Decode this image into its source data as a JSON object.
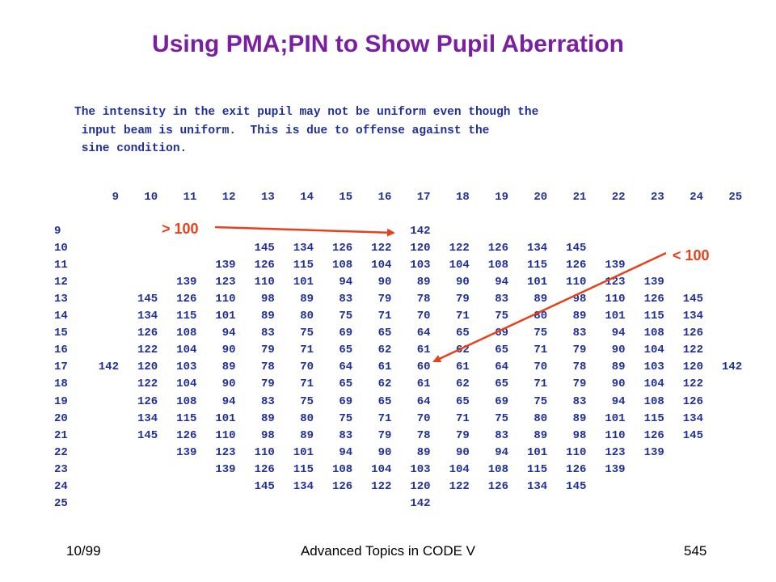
{
  "title": "Using PMA;PIN to Show Pupil Aberration",
  "intro_lines": [
    "The intensity in the exit pupil may not be uniform even though the",
    " input beam is uniform.  This is due to offense against the",
    " sine condition."
  ],
  "grid": {
    "col_headers": [
      "9",
      "10",
      "11",
      "12",
      "13",
      "14",
      "15",
      "16",
      "17",
      "18",
      "19",
      "20",
      "21",
      "22",
      "23",
      "24",
      "25"
    ],
    "rows": [
      {
        "label": "9",
        "cells": [
          "",
          "",
          "",
          "",
          "",
          "",
          "",
          "",
          "142",
          "",
          "",
          "",
          "",
          "",
          "",
          "",
          ""
        ]
      },
      {
        "label": "10",
        "cells": [
          "",
          "",
          "",
          "",
          "145",
          "134",
          "126",
          "122",
          "120",
          "122",
          "126",
          "134",
          "145",
          "",
          "",
          "",
          ""
        ]
      },
      {
        "label": "11",
        "cells": [
          "",
          "",
          "",
          "139",
          "126",
          "115",
          "108",
          "104",
          "103",
          "104",
          "108",
          "115",
          "126",
          "139",
          "",
          "",
          ""
        ]
      },
      {
        "label": "12",
        "cells": [
          "",
          "",
          "139",
          "123",
          "110",
          "101",
          "94",
          "90",
          "89",
          "90",
          "94",
          "101",
          "110",
          "123",
          "139",
          "",
          ""
        ]
      },
      {
        "label": "13",
        "cells": [
          "",
          "145",
          "126",
          "110",
          "98",
          "89",
          "83",
          "79",
          "78",
          "79",
          "83",
          "89",
          "98",
          "110",
          "126",
          "145",
          ""
        ]
      },
      {
        "label": "14",
        "cells": [
          "",
          "134",
          "115",
          "101",
          "89",
          "80",
          "75",
          "71",
          "70",
          "71",
          "75",
          "80",
          "89",
          "101",
          "115",
          "134",
          ""
        ]
      },
      {
        "label": "15",
        "cells": [
          "",
          "126",
          "108",
          "94",
          "83",
          "75",
          "69",
          "65",
          "64",
          "65",
          "69",
          "75",
          "83",
          "94",
          "108",
          "126",
          ""
        ]
      },
      {
        "label": "16",
        "cells": [
          "",
          "122",
          "104",
          "90",
          "79",
          "71",
          "65",
          "62",
          "61",
          "62",
          "65",
          "71",
          "79",
          "90",
          "104",
          "122",
          ""
        ]
      },
      {
        "label": "17",
        "cells": [
          "142",
          "120",
          "103",
          "89",
          "78",
          "70",
          "64",
          "61",
          "60",
          "61",
          "64",
          "70",
          "78",
          "89",
          "103",
          "120",
          "142"
        ]
      },
      {
        "label": "18",
        "cells": [
          "",
          "122",
          "104",
          "90",
          "79",
          "71",
          "65",
          "62",
          "61",
          "62",
          "65",
          "71",
          "79",
          "90",
          "104",
          "122",
          ""
        ]
      },
      {
        "label": "19",
        "cells": [
          "",
          "126",
          "108",
          "94",
          "83",
          "75",
          "69",
          "65",
          "64",
          "65",
          "69",
          "75",
          "83",
          "94",
          "108",
          "126",
          ""
        ]
      },
      {
        "label": "20",
        "cells": [
          "",
          "134",
          "115",
          "101",
          "89",
          "80",
          "75",
          "71",
          "70",
          "71",
          "75",
          "80",
          "89",
          "101",
          "115",
          "134",
          ""
        ]
      },
      {
        "label": "21",
        "cells": [
          "",
          "145",
          "126",
          "110",
          "98",
          "89",
          "83",
          "79",
          "78",
          "79",
          "83",
          "89",
          "98",
          "110",
          "126",
          "145",
          ""
        ]
      },
      {
        "label": "22",
        "cells": [
          "",
          "",
          "139",
          "123",
          "110",
          "101",
          "94",
          "90",
          "89",
          "90",
          "94",
          "101",
          "110",
          "123",
          "139",
          "",
          ""
        ]
      },
      {
        "label": "23",
        "cells": [
          "",
          "",
          "",
          "139",
          "126",
          "115",
          "108",
          "104",
          "103",
          "104",
          "108",
          "115",
          "126",
          "139",
          "",
          "",
          ""
        ]
      },
      {
        "label": "24",
        "cells": [
          "",
          "",
          "",
          "",
          "145",
          "134",
          "126",
          "122",
          "120",
          "122",
          "126",
          "134",
          "145",
          "",
          "",
          "",
          ""
        ]
      },
      {
        "label": "25",
        "cells": [
          "",
          "",
          "",
          "",
          "",
          "",
          "",
          "",
          "142",
          "",
          "",
          "",
          "",
          "",
          "",
          "",
          ""
        ]
      }
    ]
  },
  "annotations": {
    "gt_label": "> 100",
    "lt_label": "< 100",
    "arrow_color": "#e8401a"
  },
  "footer": {
    "date": "10/99",
    "course": "Advanced Topics in CODE V",
    "page": "545"
  },
  "colors": {
    "title": "#7a1fa2",
    "grid_text": "#1f2f9a",
    "annotation": "#e8401a"
  }
}
